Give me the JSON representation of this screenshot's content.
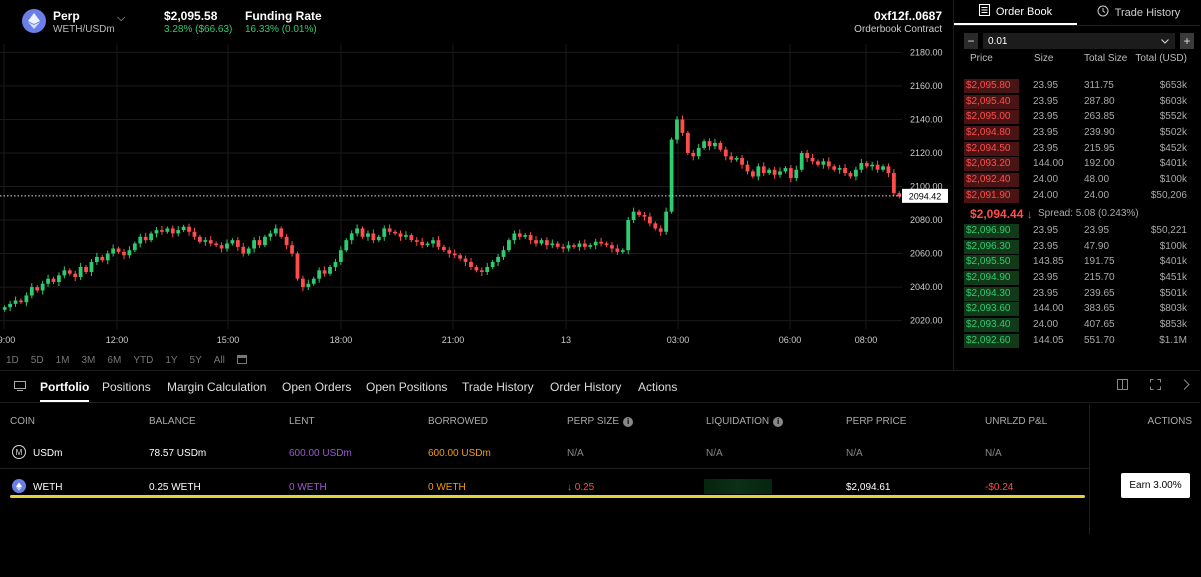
{
  "header": {
    "market_name": "Perp",
    "market_pair": "WETH/USDm",
    "price": "$2,095.58",
    "change": "3.28% ($66.63)",
    "funding_label": "Funding Rate",
    "funding_value": "16.33% (0.01%)",
    "address": "0xf12f..0687",
    "address_sub": "Orderbook Contract"
  },
  "chart": {
    "y_ticks": [
      "2180.00",
      "2160.00",
      "2140.00",
      "2120.00",
      "2100.00",
      "2080.00",
      "2060.00",
      "2040.00",
      "2020.00"
    ],
    "x_ticks": [
      "09:00",
      "12:00",
      "15:00",
      "18:00",
      "21:00",
      "13",
      "03:00",
      "06:00",
      "08:00"
    ],
    "last_price": "2094.42",
    "range_buttons": [
      "1D",
      "5D",
      "1M",
      "3M",
      "6M",
      "YTD",
      "1Y",
      "5Y",
      "All"
    ],
    "calendar_icon": "calendar-icon"
  },
  "chart_data": {
    "type": "candlestick",
    "y_axis_range": [
      2015,
      2185
    ],
    "up_color": "#2ecc71",
    "down_color": "#ff4d4d",
    "last_price": 2094.42,
    "closes": [
      2028,
      2030,
      2032,
      2031,
      2035,
      2040,
      2038,
      2042,
      2045,
      2043,
      2047,
      2050,
      2048,
      2046,
      2052,
      2049,
      2055,
      2058,
      2056,
      2060,
      2063,
      2061,
      2059,
      2062,
      2066,
      2070,
      2068,
      2072,
      2074,
      2073,
      2075,
      2072,
      2074,
      2076,
      2073,
      2070,
      2067,
      2068,
      2066,
      2065,
      2063,
      2066,
      2068,
      2064,
      2060,
      2063,
      2068,
      2065,
      2070,
      2072,
      2075,
      2070,
      2065,
      2060,
      2045,
      2040,
      2042,
      2045,
      2050,
      2048,
      2052,
      2055,
      2062,
      2068,
      2072,
      2075,
      2070,
      2072,
      2068,
      2070,
      2075,
      2073,
      2072,
      2070,
      2071,
      2068,
      2067,
      2065,
      2066,
      2068,
      2064,
      2062,
      2060,
      2059,
      2057,
      2055,
      2052,
      2050,
      2049,
      2052,
      2055,
      2058,
      2062,
      2068,
      2072,
      2070,
      2071,
      2068,
      2066,
      2068,
      2065,
      2066,
      2064,
      2063,
      2065,
      2064,
      2066,
      2064,
      2065,
      2067,
      2066,
      2065,
      2063,
      2061,
      2062,
      2080,
      2085,
      2083,
      2082,
      2078,
      2075,
      2073,
      2085,
      2128,
      2140,
      2132,
      2120,
      2118,
      2123,
      2127,
      2124,
      2126,
      2122,
      2118,
      2116,
      2117,
      2113,
      2109,
      2106,
      2112,
      2108,
      2110,
      2107,
      2109,
      2111,
      2105,
      2110,
      2120,
      2117,
      2115,
      2113,
      2115,
      2112,
      2110,
      2111,
      2108,
      2106,
      2110,
      2114,
      2112,
      2113,
      2110,
      2112,
      2108,
      2096,
      2094
    ]
  },
  "order_book": {
    "tab_book": "Order Book",
    "tab_history": "Trade History",
    "tick_size": "0.01",
    "minus": "−",
    "plus": "+",
    "head_price": "Price",
    "head_size": "Size",
    "head_total_size": "Total Size",
    "head_total_usd": "Total (USD)",
    "asks": [
      {
        "price": "$2,095.80",
        "size": "23.95",
        "total_size": "311.75",
        "total_usd": "$653k"
      },
      {
        "price": "$2,095.40",
        "size": "23.95",
        "total_size": "287.80",
        "total_usd": "$603k"
      },
      {
        "price": "$2,095.00",
        "size": "23.95",
        "total_size": "263.85",
        "total_usd": "$552k"
      },
      {
        "price": "$2,094.80",
        "size": "23.95",
        "total_size": "239.90",
        "total_usd": "$502k"
      },
      {
        "price": "$2,094.50",
        "size": "23.95",
        "total_size": "215.95",
        "total_usd": "$452k"
      },
      {
        "price": "$2,093.20",
        "size": "144.00",
        "total_size": "192.00",
        "total_usd": "$401k"
      },
      {
        "price": "$2,092.40",
        "size": "24.00",
        "total_size": "48.00",
        "total_usd": "$100k"
      },
      {
        "price": "$2,091.90",
        "size": "24.00",
        "total_size": "24.00",
        "total_usd": "$50,206"
      }
    ],
    "mid_price": "$2,094.44 ↓",
    "spread": "Spread: 5.08 (0.243%)",
    "bids": [
      {
        "price": "$2,096.90",
        "size": "23.95",
        "total_size": "23.95",
        "total_usd": "$50,221"
      },
      {
        "price": "$2,096.30",
        "size": "23.95",
        "total_size": "47.90",
        "total_usd": "$100k"
      },
      {
        "price": "$2,095.50",
        "size": "143.85",
        "total_size": "191.75",
        "total_usd": "$401k"
      },
      {
        "price": "$2,094.90",
        "size": "23.95",
        "total_size": "215.70",
        "total_usd": "$451k"
      },
      {
        "price": "$2,094.30",
        "size": "23.95",
        "total_size": "239.65",
        "total_usd": "$501k"
      },
      {
        "price": "$2,093.60",
        "size": "144.00",
        "total_size": "383.65",
        "total_usd": "$803k"
      },
      {
        "price": "$2,093.40",
        "size": "24.00",
        "total_size": "407.65",
        "total_usd": "$853k"
      },
      {
        "price": "$2,092.60",
        "size": "144.05",
        "total_size": "551.70",
        "total_usd": "$1.1M"
      }
    ]
  },
  "bottom": {
    "tabs": [
      "Portfolio",
      "Positions",
      "Margin Calculation",
      "Open Orders",
      "Open Positions",
      "Trade History",
      "Order History",
      "Actions"
    ],
    "columns": {
      "coin": "COIN",
      "balance": "BALANCE",
      "lent": "LENT",
      "borrowed": "BORROWED",
      "perp_size": "PERP SIZE",
      "liquidation": "LIQUIDATION",
      "perp_price": "PERP PRICE",
      "unrlzd": "UNRLZD P&L",
      "actions": "ACTIONS"
    },
    "rows": [
      {
        "coin": "USDm",
        "balance": "78.57 USDm",
        "lent": "600.00 USDm",
        "borrowed": "600.00 USDm",
        "perp_size": "N/A",
        "liquidation": "N/A",
        "perp_price": "N/A",
        "unrlzd": "N/A"
      },
      {
        "coin": "WETH",
        "balance": "0.25 WETH",
        "lent": "0 WETH",
        "borrowed": "0 WETH",
        "perp_size": "↓  0.25",
        "liquidation": "",
        "perp_price": "$2,094.61",
        "unrlzd": "-$0.24",
        "action": "Earn 3.00%"
      }
    ]
  }
}
